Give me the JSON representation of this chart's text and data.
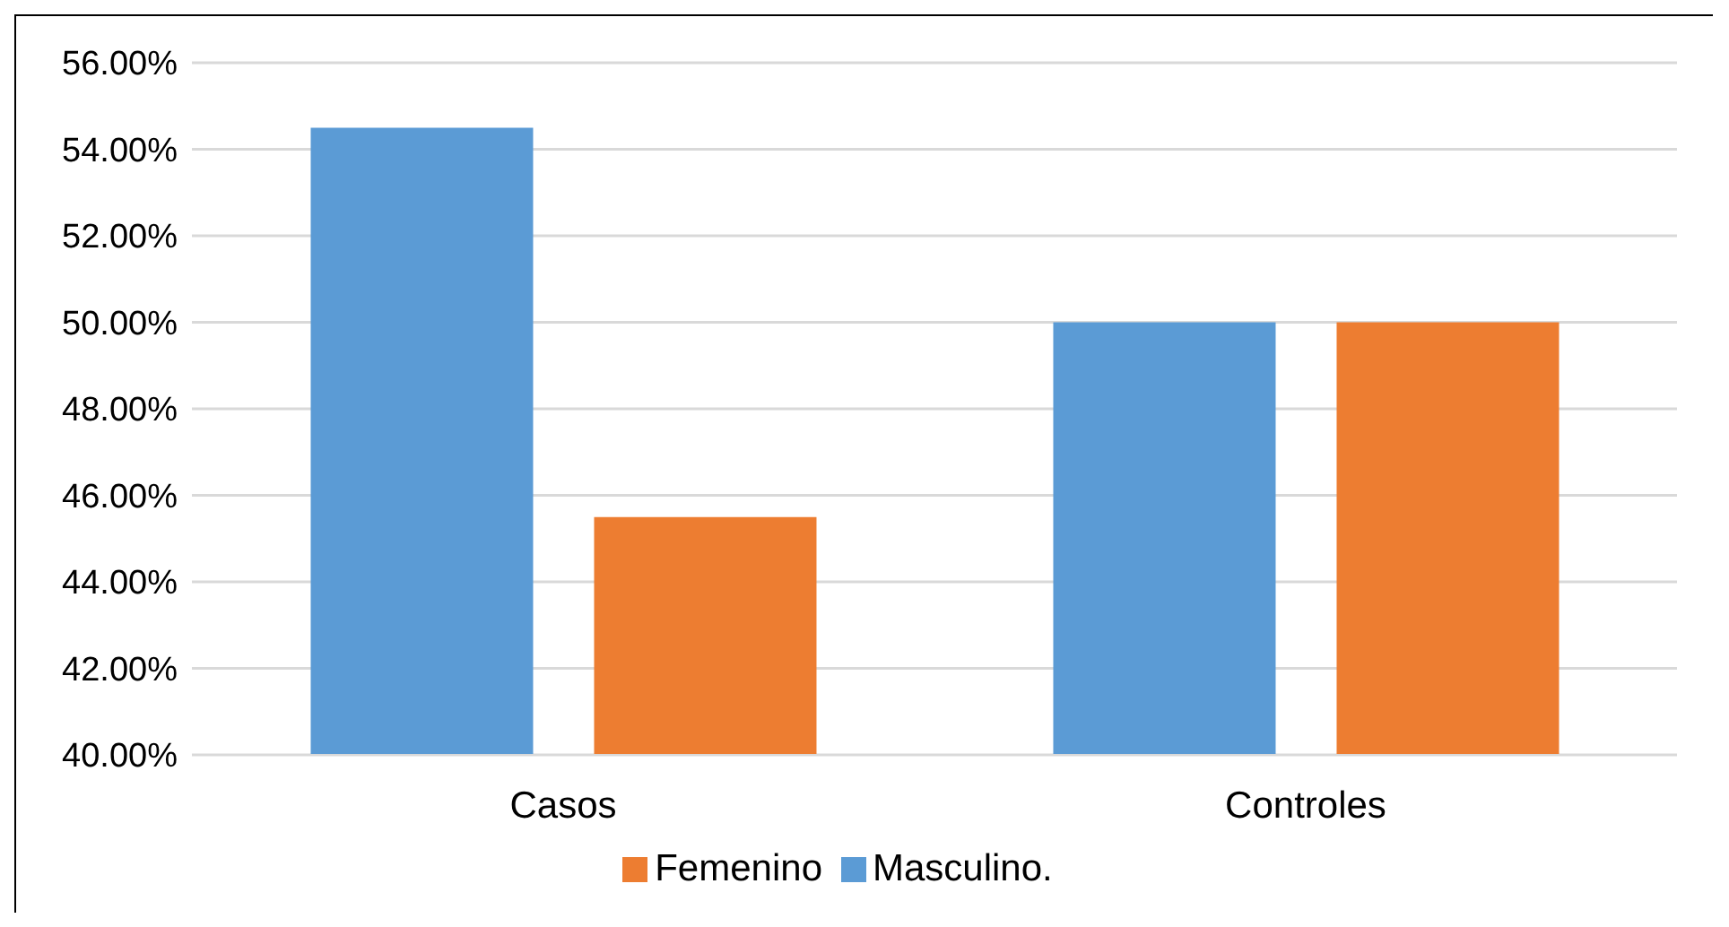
{
  "chart_data": {
    "type": "bar",
    "categories": [
      "Casos",
      "Controles"
    ],
    "series": [
      {
        "name": "Masculino.",
        "color": "#5b9bd5",
        "values": [
          54.5,
          50
        ]
      },
      {
        "name": "Femenino",
        "color": "#ed7d31",
        "values": [
          45.5,
          50
        ]
      }
    ],
    "ylim": [
      40,
      56
    ],
    "yticks": [
      {
        "value": 40,
        "label": "40.00%"
      },
      {
        "value": 42,
        "label": "42.00%"
      },
      {
        "value": 44,
        "label": "44.00%"
      },
      {
        "value": 46,
        "label": "46.00%"
      },
      {
        "value": 48,
        "label": "48.00%"
      },
      {
        "value": 50,
        "label": "50.00%"
      },
      {
        "value": 52,
        "label": "52.00%"
      },
      {
        "value": 54,
        "label": "54.00%"
      },
      {
        "value": 56,
        "label": "56.00%"
      }
    ],
    "grid": "y",
    "legend": "bottom"
  }
}
